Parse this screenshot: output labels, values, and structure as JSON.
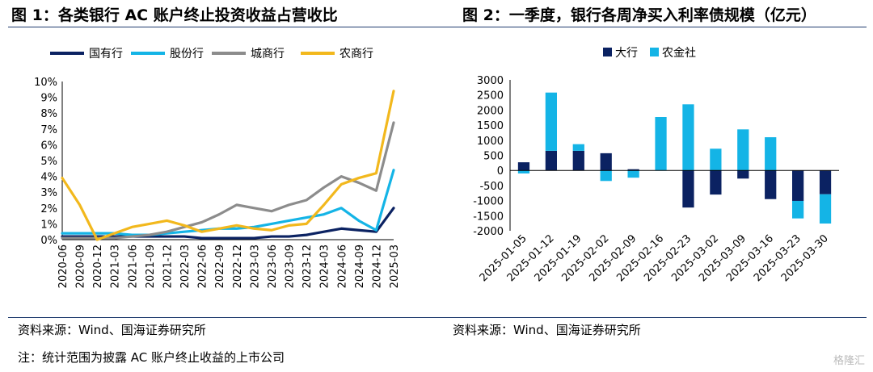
{
  "figures": {
    "fig1_title": "图 1：各类银行 AC 账户终止投资收益占营收比",
    "fig2_title": "图 2：一季度，银行各周净买入利率债规模（亿元）"
  },
  "sources": {
    "left": "资料来源：Wind、国海证券研究所",
    "right": "资料来源：Wind、国海证券研究所",
    "note": "注：统计范围为披露 AC 账户终止收益的上市公司"
  },
  "watermark": "格隆汇",
  "chart_data": [
    {
      "type": "line",
      "title": "各类银行 AC 账户终止投资收益占营收比",
      "categories": [
        "2020-06",
        "2020-09",
        "2020-12",
        "2021-03",
        "2021-06",
        "2021-09",
        "2021-12",
        "2022-03",
        "2022-06",
        "2022-09",
        "2022-12",
        "2023-03",
        "2023-06",
        "2023-09",
        "2023-12",
        "2024-03",
        "2024-06",
        "2024-09",
        "2024-12",
        "2025-03"
      ],
      "ylim": [
        0,
        10
      ],
      "yticks": [
        "0%",
        "1%",
        "2%",
        "3%",
        "4%",
        "5%",
        "6%",
        "7%",
        "8%",
        "9%",
        "10%"
      ],
      "legend_position": "top",
      "series": [
        {
          "name": "国有行",
          "color": "#0b2262",
          "values": [
            0.2,
            0.2,
            0.2,
            0.2,
            0.2,
            0.2,
            0.2,
            0.2,
            0.1,
            0.1,
            0.1,
            0.1,
            0.2,
            0.2,
            0.3,
            0.5,
            0.7,
            0.6,
            0.5,
            2.0
          ]
        },
        {
          "name": "股份行",
          "color": "#14b4e6",
          "values": [
            0.4,
            0.4,
            0.4,
            0.4,
            0.3,
            0.3,
            0.4,
            0.5,
            0.6,
            0.7,
            0.7,
            0.8,
            1.0,
            1.2,
            1.4,
            1.6,
            2.0,
            1.2,
            0.6,
            4.4
          ]
        },
        {
          "name": "城商行",
          "color": "#8c8c8c",
          "values": [
            0.1,
            0.1,
            0.1,
            0.1,
            0.2,
            0.3,
            0.5,
            0.8,
            1.1,
            1.6,
            2.2,
            2.0,
            1.8,
            2.2,
            2.5,
            3.3,
            4.0,
            3.6,
            3.1,
            7.4
          ]
        },
        {
          "name": "农商行",
          "color": "#f2b81d",
          "values": [
            3.9,
            2.2,
            0.0,
            0.4,
            0.8,
            1.0,
            1.2,
            0.9,
            0.5,
            0.7,
            0.9,
            0.7,
            0.6,
            0.9,
            1.0,
            2.2,
            3.5,
            3.9,
            4.2,
            9.4
          ]
        }
      ]
    },
    {
      "type": "bar",
      "title": "一季度，银行各周净买入利率债规模（亿元）",
      "categories": [
        "2025-01-05",
        "2025-01-12",
        "2025-01-19",
        "2025-02-02",
        "2025-02-09",
        "2025-02-16",
        "2025-02-23",
        "2025-03-02",
        "2025-03-09",
        "2025-03-16",
        "2025-03-23",
        "2025-03-30"
      ],
      "ylim": [
        -2000,
        3000
      ],
      "yticks": [
        -2000,
        -1500,
        -1000,
        -500,
        0,
        500,
        1000,
        1500,
        2000,
        2500,
        3000
      ],
      "stacked": true,
      "legend_position": "top",
      "series": [
        {
          "name": "大行",
          "color": "#0b2262",
          "values": [
            270,
            650,
            650,
            570,
            40,
            0,
            -1230,
            -800,
            -270,
            -950,
            -1010,
            -790
          ]
        },
        {
          "name": "农金社",
          "color": "#14b4e6",
          "values": [
            -100,
            1930,
            220,
            -350,
            -240,
            1770,
            2190,
            720,
            1360,
            1100,
            -580,
            -970
          ]
        }
      ]
    }
  ]
}
